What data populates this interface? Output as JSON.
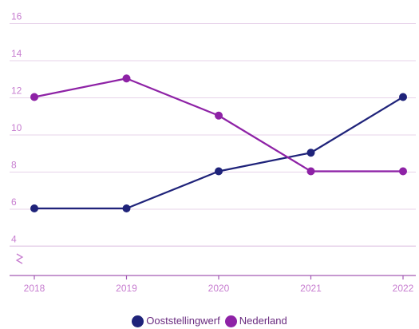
{
  "chart_data": {
    "type": "line",
    "x": [
      "2018",
      "2019",
      "2020",
      "2021",
      "2022"
    ],
    "y_ticks": [
      "4",
      "6",
      "8",
      "10",
      "12",
      "14",
      "16"
    ],
    "ylim": [
      4,
      16
    ],
    "axis_break": true,
    "grid": true,
    "legend_position": "bottom-center",
    "series": [
      {
        "name": "Ooststellingwerf",
        "color": "#1f237a",
        "values": [
          6,
          6,
          8,
          9,
          12
        ]
      },
      {
        "name": "Nederland",
        "color": "#8e22a6",
        "values": [
          12,
          13,
          11,
          8,
          8
        ]
      }
    ]
  }
}
